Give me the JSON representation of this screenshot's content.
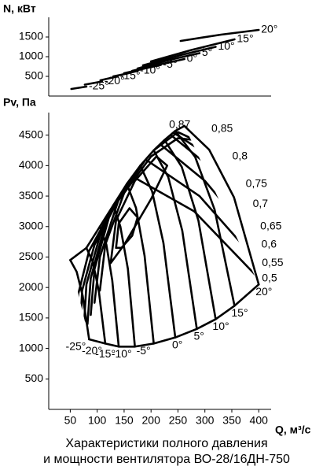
{
  "chart_data": [
    {
      "type": "line",
      "ylabel": "N, кВт",
      "xlim": [
        10,
        423
      ],
      "ylim": [
        0,
        2000
      ],
      "yticks": [
        500,
        1000,
        1500
      ],
      "color": "#000000",
      "series": [
        {
          "name": "-25°",
          "x": [
            52,
            66,
            80
          ],
          "values": [
            180,
            210,
            240
          ]
        },
        {
          "name": "-20°",
          "x": [
            77,
            93,
            109
          ],
          "values": [
            290,
            330,
            370
          ]
        },
        {
          "name": "-15°",
          "x": [
            106,
            122,
            138
          ],
          "values": [
            400,
            450,
            500
          ]
        },
        {
          "name": "-10°",
          "x": [
            130,
            155,
            175
          ],
          "values": [
            500,
            570,
            640
          ]
        },
        {
          "name": "-5°",
          "x": [
            150,
            185,
            218
          ],
          "values": [
            580,
            690,
            790
          ]
        },
        {
          "name": "0°",
          "x": [
            165,
            215,
            262
          ],
          "values": [
            640,
            800,
            940
          ]
        },
        {
          "name": "5°",
          "x": [
            175,
            235,
            290
          ],
          "values": [
            700,
            920,
            1090
          ]
        },
        {
          "name": "10°",
          "x": [
            185,
            255,
            320
          ],
          "values": [
            780,
            1040,
            1250
          ]
        },
        {
          "name": "15°",
          "x": [
            200,
            275,
            355
          ],
          "values": [
            880,
            1170,
            1440
          ]
        },
        {
          "name": "20°",
          "x": [
            255,
            330,
            400
          ],
          "values": [
            1400,
            1560,
            1680
          ]
        }
      ]
    },
    {
      "type": "line",
      "ylabel": "Pv, Па",
      "xlabel": "Q, м³/с",
      "xlim": [
        10,
        423
      ],
      "ylim": [
        0,
        4870
      ],
      "xticks": [
        50,
        100,
        150,
        200,
        250,
        300,
        350,
        400
      ],
      "yticks": [
        500,
        1000,
        1500,
        2000,
        2500,
        3000,
        3500,
        4000,
        4500
      ],
      "color": "#000000",
      "title": [
        "Характеристики полного давления",
        "и мощности вентилятора ВО-28/16ДН-750"
      ],
      "series": [
        {
          "name": "-25°",
          "x": [
            50,
            62,
            73,
            85
          ],
          "values": [
            2450,
            2255,
            1865,
            1150
          ]
        },
        {
          "name": "-20°",
          "x": [
            80,
            92,
            103,
            115
          ],
          "values": [
            2650,
            2415,
            1944,
            1080
          ]
        },
        {
          "name": "-15°",
          "x": [
            105,
            117,
            128,
            140
          ],
          "values": [
            3000,
            2705,
            2114,
            1030
          ]
        },
        {
          "name": "-10°",
          "x": [
            130,
            143,
            157,
            170
          ],
          "values": [
            3350,
            3002,
            2306,
            1030
          ]
        },
        {
          "name": "-5°",
          "x": [
            155,
            172,
            188,
            205
          ],
          "values": [
            3700,
            3307,
            2521,
            1080
          ]
        },
        {
          "name": "0°",
          "x": [
            180,
            202,
            223,
            245
          ],
          "values": [
            4000,
            3577,
            2731,
            1180
          ]
        },
        {
          "name": "5°",
          "x": [
            205,
            232,
            258,
            285
          ],
          "values": [
            4250,
            3810,
            2932,
            1320
          ]
        },
        {
          "name": "10°",
          "x": [
            225,
            257,
            288,
            320
          ],
          "values": [
            4420,
            3979,
            3097,
            1480
          ]
        },
        {
          "name": "15°",
          "x": [
            245,
            282,
            318,
            355
          ],
          "values": [
            4570,
            4140,
            3279,
            1700
          ]
        },
        {
          "name": "20°",
          "x": [
            262,
            308,
            354,
            400
          ],
          "values": [
            4650,
            4260,
            3480,
            2050
          ]
        }
      ],
      "efficiency": [
        {
          "name": "0,87",
          "x": [
            135,
            140,
            160,
            175,
            165,
            145,
            135
          ],
          "values": [
            2650,
            3050,
            3300,
            3150,
            2850,
            2650,
            2650
          ]
        },
        {
          "name": "0,85",
          "x": [
            125,
            135,
            170,
            210,
            230,
            200,
            150,
            125
          ],
          "values": [
            2400,
            3100,
            3750,
            4150,
            4000,
            3450,
            2700,
            2400
          ]
        },
        {
          "name": "0,8",
          "x": [
            105,
            115,
            150,
            200,
            250,
            300,
            345
          ],
          "values": [
            1950,
            2700,
            3550,
            4150,
            4450,
            4400,
            4150
          ]
        },
        {
          "name": "0,75",
          "x": [
            95,
            105,
            140,
            190,
            250,
            310,
            370
          ],
          "values": [
            1750,
            2500,
            3450,
            4150,
            4550,
            4300,
            3700
          ]
        },
        {
          "name": "0,7",
          "x": [
            88,
            95,
            125,
            175,
            240,
            310,
            383
          ],
          "values": [
            1550,
            2300,
            3250,
            4050,
            4550,
            4150,
            3370
          ]
        },
        {
          "name": "0,65",
          "x": [
            82,
            88,
            115,
            165,
            230,
            320,
            397
          ],
          "values": [
            1400,
            2150,
            3050,
            3900,
            4550,
            3900,
            3000
          ]
        },
        {
          "name": "0,6",
          "x": [
            75,
            80,
            105,
            150,
            210,
            300,
            399
          ],
          "values": [
            1300,
            2050,
            2850,
            3650,
            4400,
            3750,
            2700
          ]
        },
        {
          "name": "0,55",
          "x": [
            68,
            72,
            95,
            140,
            190,
            290,
            400
          ],
          "values": [
            1200,
            1950,
            2700,
            3450,
            4100,
            3500,
            2400
          ]
        },
        {
          "name": "0,5",
          "x": [
            60,
            65,
            85,
            125,
            170,
            280,
            400
          ],
          "values": [
            1150,
            1900,
            2600,
            3250,
            3800,
            3250,
            2150
          ]
        }
      ]
    }
  ]
}
